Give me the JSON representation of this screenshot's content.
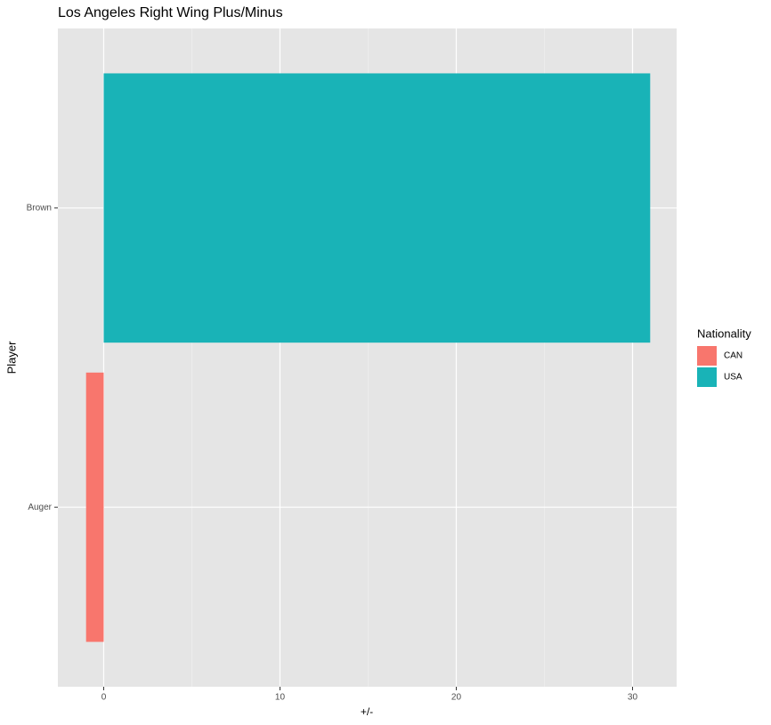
{
  "chart_data": {
    "type": "bar",
    "orientation": "horizontal",
    "title": "Los Angeles Right Wing Plus/Minus",
    "x_label": "+/-",
    "y_label": "Player",
    "categories": [
      "Auger",
      "Brown"
    ],
    "series": [
      {
        "name": "CAN",
        "color": "#f8766d",
        "values": [
          -1,
          null
        ]
      },
      {
        "name": "USA",
        "color": "#19b3b7",
        "values": [
          null,
          31
        ]
      }
    ],
    "legend_title": "Nationality",
    "legend": "right",
    "xlim": [
      -2.6,
      32.5
    ],
    "xticks": [
      0,
      10,
      20,
      30
    ],
    "minor_xticks": [
      5,
      15,
      25
    ],
    "grid": true
  }
}
